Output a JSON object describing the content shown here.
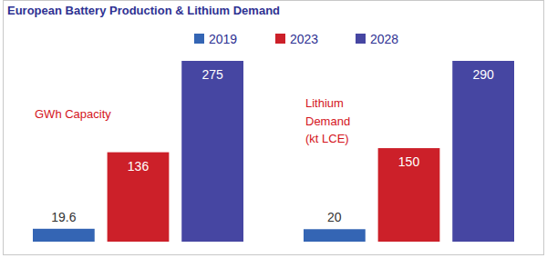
{
  "chart_data": [
    {
      "type": "bar",
      "title": "European Battery Production & Lithium Demand",
      "ylabel": "GWh Capacity",
      "series": [
        {
          "name": "2019",
          "color": "#3465b4",
          "values": [
            19.6
          ]
        },
        {
          "name": "2023",
          "color": "#cc2029",
          "values": [
            136
          ]
        },
        {
          "name": "2028",
          "color": "#4646a2",
          "values": [
            275
          ]
        }
      ],
      "ylim": [
        0,
        275
      ],
      "legend": "top",
      "data_labels": true,
      "tick_labels": false,
      "grid": false
    },
    {
      "type": "bar",
      "ylabel": "Lithium Demand (kt LCE)",
      "series": [
        {
          "name": "2019",
          "color": "#3465b4",
          "values": [
            20
          ]
        },
        {
          "name": "2023",
          "color": "#cc2029",
          "values": [
            150
          ]
        },
        {
          "name": "2028",
          "color": "#4646a2",
          "values": [
            290
          ]
        }
      ],
      "ylim": [
        0,
        290
      ],
      "data_labels": true,
      "tick_labels": false,
      "grid": false
    }
  ]
}
